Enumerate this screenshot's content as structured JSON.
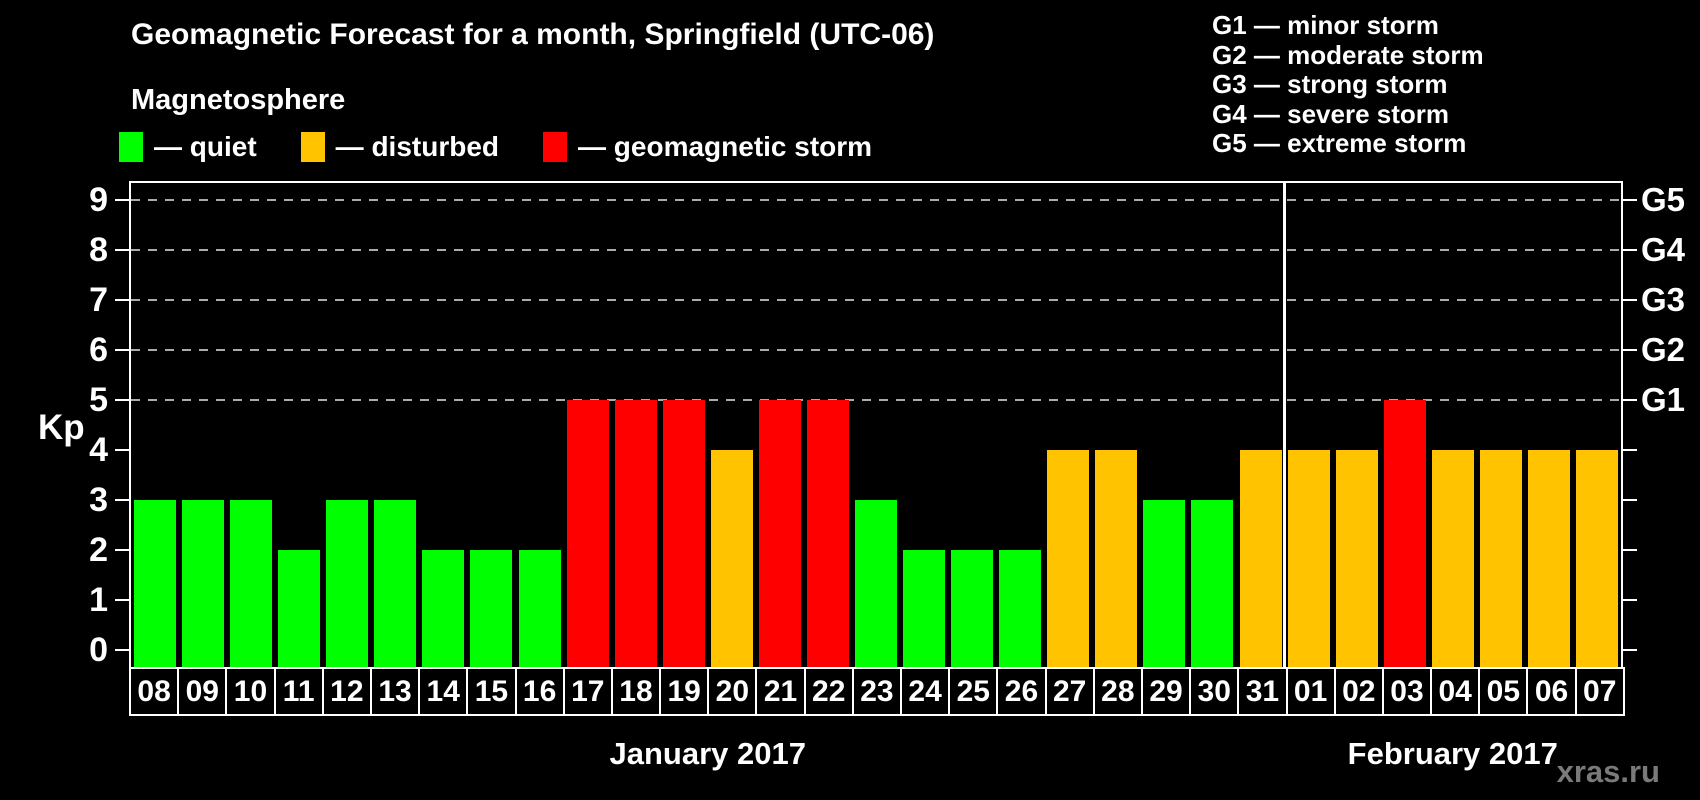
{
  "header": {
    "title": "Geomagnetic Forecast for a month, Springfield (UTC-06)"
  },
  "magnetosphere_legend": {
    "title": "Magnetosphere",
    "items": [
      {
        "level": "quiet",
        "label": "— quiet",
        "color": "#00FF00"
      },
      {
        "level": "disturbed",
        "label": "— disturbed",
        "color": "#FFC300"
      },
      {
        "level": "storm",
        "label": "— geomagnetic storm",
        "color": "#FF0000"
      }
    ]
  },
  "storm_scale_legend": {
    "lines": [
      "G1 — minor storm",
      "G2 — moderate storm",
      "G3 — strong storm",
      "G4 — severe storm",
      "G5 — extreme storm"
    ]
  },
  "watermark": "xras.ru",
  "chart_data": {
    "type": "bar",
    "title": "Geomagnetic Forecast for a month, Springfield (UTC-06)",
    "y_label": "Kp",
    "ylim": [
      0,
      9.5
    ],
    "y_ticks": [
      0,
      1,
      2,
      3,
      4,
      5,
      6,
      7,
      8,
      9
    ],
    "gridlines_at": [
      5,
      6,
      7,
      8,
      9
    ],
    "grid_style": "dashed",
    "legend_position": "top",
    "right_axis": [
      {
        "kp": 5,
        "label": "G1"
      },
      {
        "kp": 6,
        "label": "G2"
      },
      {
        "kp": 7,
        "label": "G3"
      },
      {
        "kp": 8,
        "label": "G4"
      },
      {
        "kp": 9,
        "label": "G5"
      }
    ],
    "level_colors": {
      "quiet": "#00FF00",
      "disturbed": "#FFC300",
      "storm": "#FF0000"
    },
    "months": [
      {
        "label": "January 2017",
        "days": [
          {
            "date": "08",
            "kp": 3,
            "level": "quiet"
          },
          {
            "date": "09",
            "kp": 3,
            "level": "quiet"
          },
          {
            "date": "10",
            "kp": 3,
            "level": "quiet"
          },
          {
            "date": "11",
            "kp": 2,
            "level": "quiet"
          },
          {
            "date": "12",
            "kp": 3,
            "level": "quiet"
          },
          {
            "date": "13",
            "kp": 3,
            "level": "quiet"
          },
          {
            "date": "14",
            "kp": 2,
            "level": "quiet"
          },
          {
            "date": "15",
            "kp": 2,
            "level": "quiet"
          },
          {
            "date": "16",
            "kp": 2,
            "level": "quiet"
          },
          {
            "date": "17",
            "kp": 5,
            "level": "storm"
          },
          {
            "date": "18",
            "kp": 5,
            "level": "storm"
          },
          {
            "date": "19",
            "kp": 5,
            "level": "storm"
          },
          {
            "date": "20",
            "kp": 4,
            "level": "disturbed"
          },
          {
            "date": "21",
            "kp": 5,
            "level": "storm"
          },
          {
            "date": "22",
            "kp": 5,
            "level": "storm"
          },
          {
            "date": "23",
            "kp": 3,
            "level": "quiet"
          },
          {
            "date": "24",
            "kp": 2,
            "level": "quiet"
          },
          {
            "date": "25",
            "kp": 2,
            "level": "quiet"
          },
          {
            "date": "26",
            "kp": 2,
            "level": "quiet"
          },
          {
            "date": "27",
            "kp": 4,
            "level": "disturbed"
          },
          {
            "date": "28",
            "kp": 4,
            "level": "disturbed"
          },
          {
            "date": "29",
            "kp": 3,
            "level": "quiet"
          },
          {
            "date": "30",
            "kp": 3,
            "level": "quiet"
          },
          {
            "date": "31",
            "kp": 4,
            "level": "disturbed"
          }
        ]
      },
      {
        "label": "February 2017",
        "days": [
          {
            "date": "01",
            "kp": 4,
            "level": "disturbed"
          },
          {
            "date": "02",
            "kp": 4,
            "level": "disturbed"
          },
          {
            "date": "03",
            "kp": 5,
            "level": "storm"
          },
          {
            "date": "04",
            "kp": 4,
            "level": "disturbed"
          },
          {
            "date": "05",
            "kp": 4,
            "level": "disturbed"
          },
          {
            "date": "06",
            "kp": 4,
            "level": "disturbed"
          },
          {
            "date": "07",
            "kp": 4,
            "level": "disturbed"
          }
        ]
      }
    ]
  }
}
